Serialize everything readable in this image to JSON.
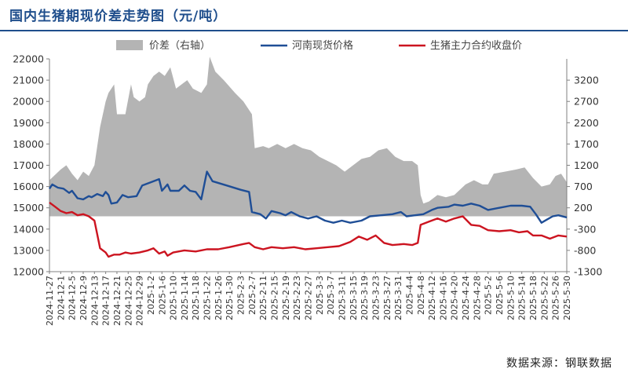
{
  "title": "国内生猪期现价差走势图（元/吨）",
  "source": "数据来源：钢联数据",
  "colors": {
    "spread": "#b4b4b4",
    "spot": "#1f4e96",
    "futures": "#cc1420",
    "title": "#1f4e8c"
  },
  "chart_data": {
    "type": "line",
    "legend_position": "top",
    "grid": false,
    "y_left_range": [
      12000,
      22000
    ],
    "y_left_ticks": [
      "22000",
      "21000",
      "20000",
      "19000",
      "18000",
      "17000",
      "16000",
      "15000",
      "14000",
      "13000",
      "12000"
    ],
    "y_right_range": [
      -1300,
      3700
    ],
    "y_right_ticks": [
      "3200",
      "2700",
      "2200",
      "1700",
      "1200",
      "700",
      "200",
      "-300",
      "-800",
      "-1300"
    ],
    "x_tick_labels": [
      "2024-11-27",
      "2024-12-1",
      "2024-12-5",
      "2024-12-9",
      "2024-12-13",
      "2024-12-17",
      "2024-12-21",
      "2024-12-25",
      "2024-12-29",
      "2025-1-2",
      "2025-1-6",
      "2025-1-10",
      "2025-1-14",
      "2025-1-18",
      "2025-1-22",
      "2025-1-26",
      "2025-1-30",
      "2025-2-3",
      "2025-2-7",
      "2025-2-11",
      "2025-2-15",
      "2025-2-19",
      "2025-2-23",
      "2025-2-27",
      "2025-3-3",
      "2025-3-7",
      "2025-3-11",
      "2025-3-15",
      "2025-3-19",
      "2025-3-23",
      "2025-3-27",
      "2025-3-31",
      "2025-4-4",
      "2025-4-8",
      "2025-4-12",
      "2025-4-16",
      "2025-4-20",
      "2025-4-24",
      "2025-4-28",
      "2025-5-2",
      "2025-5-6",
      "2025-5-10",
      "2025-5-14",
      "2025-5-18",
      "2025-5-22",
      "2025-5-26",
      "2025-5-30"
    ],
    "series": [
      {
        "name": "价差（右轴）",
        "type": "area",
        "axis": "right",
        "points": [
          [
            "2024-11-27",
            850
          ],
          [
            "2024-12-1",
            1100
          ],
          [
            "2024-12-3",
            1200
          ],
          [
            "2024-12-5",
            1000
          ],
          [
            "2024-12-7",
            850
          ],
          [
            "2024-12-9",
            1050
          ],
          [
            "2024-12-11",
            950
          ],
          [
            "2024-12-13",
            1200
          ],
          [
            "2024-12-15",
            2100
          ],
          [
            "2024-12-17",
            2700
          ],
          [
            "2024-12-18",
            2900
          ],
          [
            "2024-12-20",
            3100
          ],
          [
            "2024-12-21",
            2400
          ],
          [
            "2024-12-23",
            2400
          ],
          [
            "2024-12-24",
            2400
          ],
          [
            "2024-12-26",
            3100
          ],
          [
            "2024-12-27",
            2800
          ],
          [
            "2024-12-29",
            2700
          ],
          [
            "2024-12-31",
            2800
          ],
          [
            "2025-1-1",
            3100
          ],
          [
            "2025-1-3",
            3300
          ],
          [
            "2025-1-5",
            3400
          ],
          [
            "2025-1-7",
            3300
          ],
          [
            "2025-1-9",
            3500
          ],
          [
            "2025-1-11",
            3000
          ],
          [
            "2025-1-13",
            3100
          ],
          [
            "2025-1-15",
            3200
          ],
          [
            "2025-1-17",
            3000
          ],
          [
            "2025-1-20",
            2900
          ],
          [
            "2025-1-22",
            3100
          ],
          [
            "2025-1-23",
            3750
          ],
          [
            "2025-1-25",
            3400
          ],
          [
            "2025-1-28",
            3200
          ],
          [
            "2025-2-1",
            2900
          ],
          [
            "2025-2-4",
            2700
          ],
          [
            "2025-2-7",
            2400
          ],
          [
            "2025-2-8",
            1600
          ],
          [
            "2025-2-11",
            1650
          ],
          [
            "2025-2-13",
            1600
          ],
          [
            "2025-2-16",
            1700
          ],
          [
            "2025-2-19",
            1600
          ],
          [
            "2025-2-22",
            1700
          ],
          [
            "2025-2-25",
            1600
          ],
          [
            "2025-2-28",
            1550
          ],
          [
            "2025-3-3",
            1400
          ],
          [
            "2025-3-6",
            1300
          ],
          [
            "2025-3-9",
            1200
          ],
          [
            "2025-3-12",
            1050
          ],
          [
            "2025-3-15",
            1200
          ],
          [
            "2025-3-18",
            1350
          ],
          [
            "2025-3-21",
            1400
          ],
          [
            "2025-3-24",
            1550
          ],
          [
            "2025-3-27",
            1600
          ],
          [
            "2025-3-30",
            1400
          ],
          [
            "2025-4-2",
            1300
          ],
          [
            "2025-4-5",
            1300
          ],
          [
            "2025-4-7",
            1200
          ],
          [
            "2025-4-8",
            500
          ],
          [
            "2025-4-9",
            300
          ],
          [
            "2025-4-11",
            350
          ],
          [
            "2025-4-14",
            500
          ],
          [
            "2025-4-17",
            450
          ],
          [
            "2025-4-20",
            500
          ],
          [
            "2025-4-24",
            750
          ],
          [
            "2025-4-27",
            850
          ],
          [
            "2025-4-30",
            750
          ],
          [
            "2025-5-2",
            750
          ],
          [
            "2025-5-4",
            1000
          ],
          [
            "2025-5-8",
            1050
          ],
          [
            "2025-5-12",
            1100
          ],
          [
            "2025-5-15",
            1150
          ],
          [
            "2025-5-18",
            900
          ],
          [
            "2025-5-21",
            700
          ],
          [
            "2025-5-24",
            750
          ],
          [
            "2025-5-26",
            950
          ],
          [
            "2025-5-28",
            1000
          ],
          [
            "2025-5-30",
            800
          ]
        ]
      },
      {
        "name": "河南现货价格",
        "type": "line",
        "axis": "left",
        "points": [
          [
            "2024-11-27",
            15900
          ],
          [
            "2024-11-28",
            16100
          ],
          [
            "2024-11-30",
            15950
          ],
          [
            "2024-12-2",
            15900
          ],
          [
            "2024-12-4",
            15700
          ],
          [
            "2024-12-5",
            15800
          ],
          [
            "2024-12-7",
            15450
          ],
          [
            "2024-12-9",
            15400
          ],
          [
            "2024-12-11",
            15550
          ],
          [
            "2024-12-12",
            15500
          ],
          [
            "2024-12-14",
            15650
          ],
          [
            "2024-12-16",
            15550
          ],
          [
            "2024-12-17",
            15750
          ],
          [
            "2024-12-18",
            15600
          ],
          [
            "2024-12-19",
            15200
          ],
          [
            "2024-12-21",
            15250
          ],
          [
            "2024-12-23",
            15600
          ],
          [
            "2024-12-25",
            15500
          ],
          [
            "2024-12-28",
            15550
          ],
          [
            "2024-12-30",
            16050
          ],
          [
            "2025-1-2",
            16200
          ],
          [
            "2025-1-5",
            16350
          ],
          [
            "2025-1-6",
            15800
          ],
          [
            "2025-1-8",
            16100
          ],
          [
            "2025-1-9",
            15800
          ],
          [
            "2025-1-12",
            15800
          ],
          [
            "2025-1-14",
            16050
          ],
          [
            "2025-1-16",
            15800
          ],
          [
            "2025-1-18",
            15750
          ],
          [
            "2025-1-20",
            15400
          ],
          [
            "2025-1-22",
            16700
          ],
          [
            "2025-1-24",
            16250
          ],
          [
            "2025-1-29",
            16050
          ],
          [
            "2025-2-3",
            15850
          ],
          [
            "2025-2-6",
            15750
          ],
          [
            "2025-2-7",
            14800
          ],
          [
            "2025-2-10",
            14700
          ],
          [
            "2025-2-12",
            14500
          ],
          [
            "2025-2-14",
            14850
          ],
          [
            "2025-2-17",
            14750
          ],
          [
            "2025-2-19",
            14650
          ],
          [
            "2025-2-21",
            14800
          ],
          [
            "2025-2-24",
            14600
          ],
          [
            "2025-2-27",
            14500
          ],
          [
            "2025-3-2",
            14600
          ],
          [
            "2025-3-5",
            14400
          ],
          [
            "2025-3-8",
            14300
          ],
          [
            "2025-3-11",
            14400
          ],
          [
            "2025-3-14",
            14300
          ],
          [
            "2025-3-18",
            14400
          ],
          [
            "2025-3-21",
            14600
          ],
          [
            "2025-3-25",
            14650
          ],
          [
            "2025-3-29",
            14700
          ],
          [
            "2025-4-1",
            14800
          ],
          [
            "2025-4-3",
            14600
          ],
          [
            "2025-4-6",
            14650
          ],
          [
            "2025-4-9",
            14700
          ],
          [
            "2025-4-12",
            14900
          ],
          [
            "2025-4-14",
            15000
          ],
          [
            "2025-4-18",
            15050
          ],
          [
            "2025-4-20",
            15150
          ],
          [
            "2025-4-23",
            15100
          ],
          [
            "2025-4-26",
            15200
          ],
          [
            "2025-4-29",
            15100
          ],
          [
            "2025-5-2",
            14900
          ],
          [
            "2025-5-6",
            15000
          ],
          [
            "2025-5-10",
            15100
          ],
          [
            "2025-5-14",
            15100
          ],
          [
            "2025-5-17",
            15050
          ],
          [
            "2025-5-19",
            14700
          ],
          [
            "2025-5-21",
            14300
          ],
          [
            "2025-5-23",
            14450
          ],
          [
            "2025-5-25",
            14600
          ],
          [
            "2025-5-27",
            14650
          ],
          [
            "2025-5-30",
            14550
          ]
        ]
      },
      {
        "name": "生猪主力合约收盘价",
        "type": "line",
        "axis": "left",
        "points": [
          [
            "2024-11-27",
            15250
          ],
          [
            "2024-11-29",
            15050
          ],
          [
            "2024-12-1",
            14850
          ],
          [
            "2024-12-3",
            14750
          ],
          [
            "2024-12-5",
            14800
          ],
          [
            "2024-12-7",
            14650
          ],
          [
            "2024-12-9",
            14700
          ],
          [
            "2024-12-11",
            14600
          ],
          [
            "2024-12-13",
            14400
          ],
          [
            "2024-12-15",
            13100
          ],
          [
            "2024-12-17",
            12900
          ],
          [
            "2024-12-18",
            12700
          ],
          [
            "2024-12-20",
            12800
          ],
          [
            "2024-12-22",
            12800
          ],
          [
            "2024-12-24",
            12900
          ],
          [
            "2024-12-26",
            12850
          ],
          [
            "2024-12-29",
            12900
          ],
          [
            "2025-1-1",
            13000
          ],
          [
            "2025-1-3",
            13100
          ],
          [
            "2025-1-5",
            12850
          ],
          [
            "2025-1-7",
            12950
          ],
          [
            "2025-1-8",
            12750
          ],
          [
            "2025-1-10",
            12900
          ],
          [
            "2025-1-14",
            13000
          ],
          [
            "2025-1-18",
            12950
          ],
          [
            "2025-1-22",
            13050
          ],
          [
            "2025-1-26",
            13050
          ],
          [
            "2025-1-30",
            13150
          ],
          [
            "2025-2-4",
            13300
          ],
          [
            "2025-2-6",
            13350
          ],
          [
            "2025-2-8",
            13150
          ],
          [
            "2025-2-11",
            13050
          ],
          [
            "2025-2-14",
            13150
          ],
          [
            "2025-2-18",
            13100
          ],
          [
            "2025-2-22",
            13150
          ],
          [
            "2025-2-26",
            13050
          ],
          [
            "2025-3-2",
            13100
          ],
          [
            "2025-3-6",
            13150
          ],
          [
            "2025-3-10",
            13200
          ],
          [
            "2025-3-14",
            13400
          ],
          [
            "2025-3-17",
            13650
          ],
          [
            "2025-3-20",
            13500
          ],
          [
            "2025-3-23",
            13700
          ],
          [
            "2025-3-26",
            13350
          ],
          [
            "2025-3-29",
            13250
          ],
          [
            "2025-4-2",
            13300
          ],
          [
            "2025-4-5",
            13250
          ],
          [
            "2025-4-7",
            13350
          ],
          [
            "2025-4-8",
            14200
          ],
          [
            "2025-4-11",
            14350
          ],
          [
            "2025-4-14",
            14500
          ],
          [
            "2025-4-17",
            14350
          ],
          [
            "2025-4-20",
            14500
          ],
          [
            "2025-4-23",
            14600
          ],
          [
            "2025-4-26",
            14200
          ],
          [
            "2025-4-29",
            14150
          ],
          [
            "2025-5-2",
            13950
          ],
          [
            "2025-5-6",
            13900
          ],
          [
            "2025-5-10",
            13950
          ],
          [
            "2025-5-13",
            13850
          ],
          [
            "2025-5-16",
            13900
          ],
          [
            "2025-5-18",
            13700
          ],
          [
            "2025-5-21",
            13700
          ],
          [
            "2025-5-24",
            13550
          ],
          [
            "2025-5-27",
            13700
          ],
          [
            "2025-5-30",
            13650
          ]
        ]
      }
    ]
  }
}
